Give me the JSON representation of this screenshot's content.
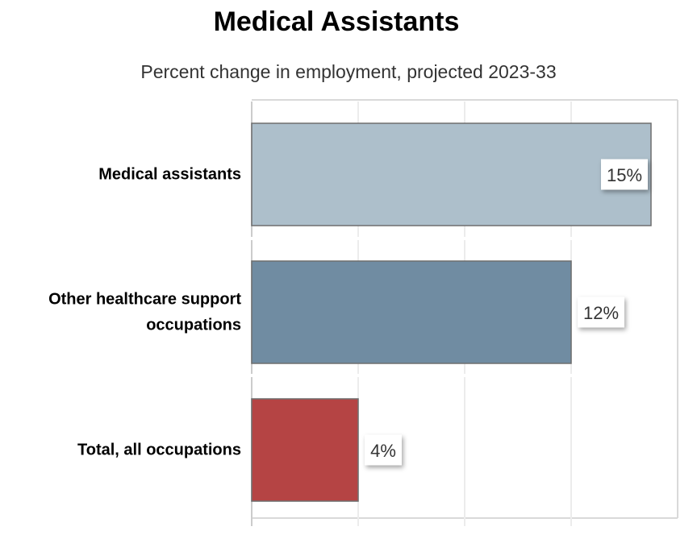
{
  "chart_data": {
    "type": "bar",
    "orientation": "horizontal",
    "title": "Medical Assistants",
    "subtitle": "Percent change in employment, projected 2023-33",
    "categories": [
      [
        "Medical assistants"
      ],
      [
        "Other healthcare support",
        "occupations"
      ],
      [
        "Total, all occupations"
      ]
    ],
    "values": [
      15,
      12,
      4
    ],
    "data_labels": [
      "15%",
      "12%",
      "4%"
    ],
    "colors": [
      "#adbfcb",
      "#708ca2",
      "#b54444"
    ],
    "xlim": [
      0,
      16
    ],
    "grid": true,
    "legend": "none"
  }
}
